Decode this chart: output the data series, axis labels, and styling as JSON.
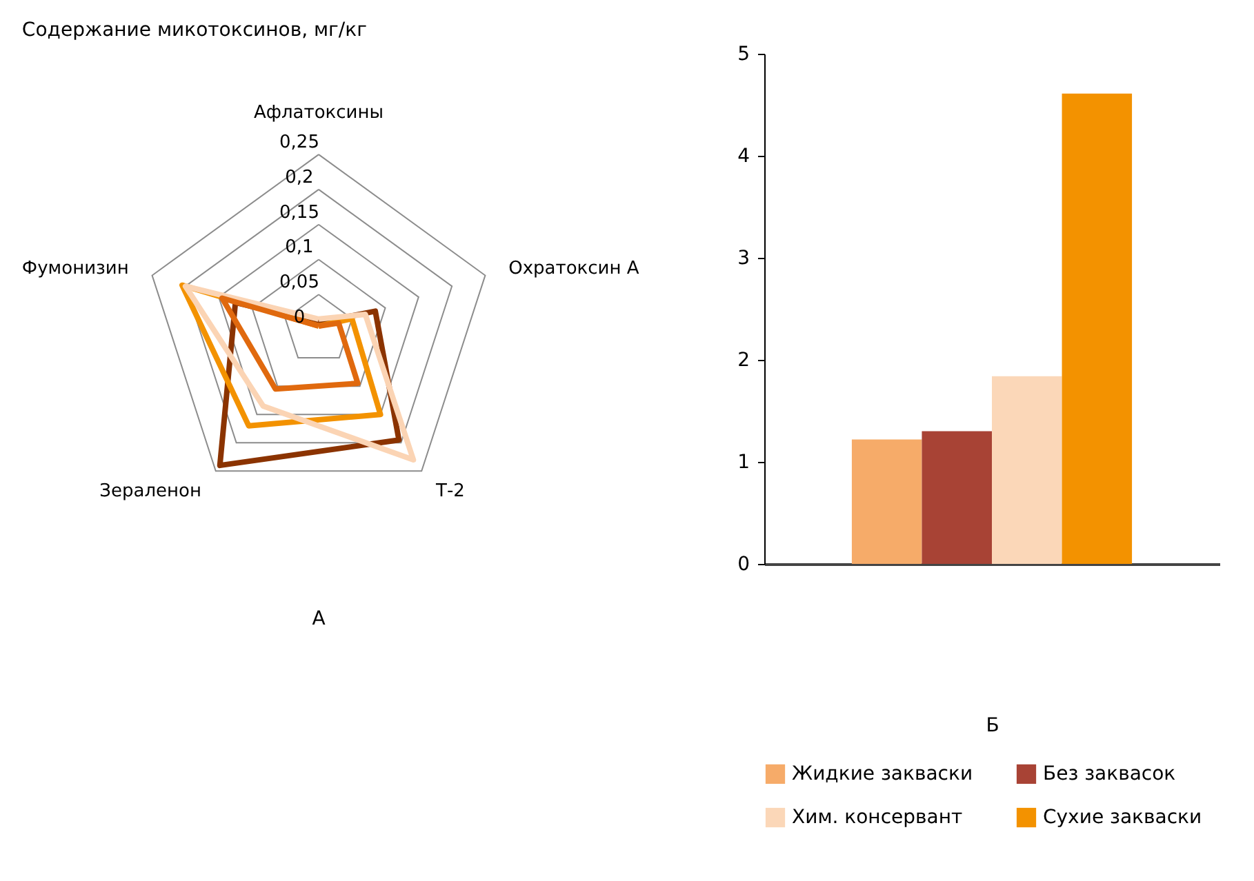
{
  "chart_data": [
    {
      "type": "radar",
      "title": "Содержание микотоксинов, мг/кг",
      "xlabel": "А",
      "categories": [
        "Афлатоксины",
        "Охратоксин А",
        "Т-2",
        "Зераленон",
        "Фумонизин"
      ],
      "ylim": [
        0,
        0.25
      ],
      "yticks": [
        0,
        {
          "value": 0.05,
          "label": "0,05"
        },
        {
          "value": 0.1,
          "label": "0,1"
        },
        {
          "value": 0.15,
          "label": "0,15"
        },
        {
          "value": 0.2,
          "label": "0,2"
        },
        {
          "value": 0.25,
          "label": "0,25"
        }
      ],
      "grid": true,
      "series": [
        {
          "color": "#8b3300",
          "values": [
            0.01,
            0.085,
            0.195,
            0.24,
            0.125
          ]
        },
        {
          "color": "#f39200",
          "values": [
            0.005,
            0.05,
            0.15,
            0.17,
            0.205
          ]
        },
        {
          "color": "#fbd4b4",
          "values": [
            0.015,
            0.07,
            0.23,
            0.135,
            0.2
          ]
        },
        {
          "color": "#e0690e",
          "values": [
            0.005,
            0.03,
            0.095,
            0.105,
            0.145
          ]
        }
      ]
    },
    {
      "type": "bar",
      "xlabel": "Б",
      "categories": [
        null
      ],
      "ylim": [
        0,
        5
      ],
      "yticks": [
        0,
        1,
        2,
        3,
        4,
        5
      ],
      "legend": "bottom",
      "series": [
        {
          "name": "Жидкие закваски",
          "color": "#f6ab69",
          "values": [
            1.22
          ]
        },
        {
          "name": "Без заквасок",
          "color": "#a84335",
          "values": [
            1.3
          ]
        },
        {
          "name": "Хим. консервант",
          "color": "#fbd7b8",
          "values": [
            1.84
          ]
        },
        {
          "name": "Сухие закваски",
          "color": "#f39200",
          "values": [
            4.61
          ]
        }
      ]
    }
  ]
}
